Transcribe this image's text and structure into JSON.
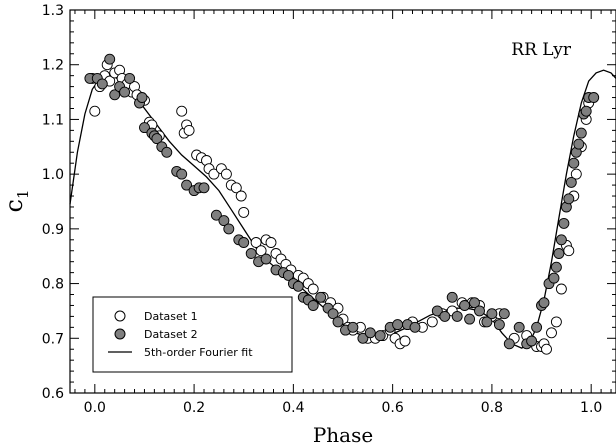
{
  "chart_data": {
    "type": "scatter",
    "title": "",
    "annotation": "RR Lyr",
    "xlabel": "Phase",
    "ylabel": "c",
    "ylabel_subscript": "1",
    "xlim": [
      -0.05,
      1.05
    ],
    "ylim": [
      0.6,
      1.3
    ],
    "xticks": [
      0.0,
      0.2,
      0.4,
      0.6,
      0.8,
      1.0
    ],
    "xtick_labels": [
      "0.0",
      "0.2",
      "0.4",
      "0.6",
      "0.8",
      "1.0"
    ],
    "yticks": [
      0.6,
      0.7,
      0.8,
      0.9,
      1.0,
      1.1,
      1.2,
      1.3
    ],
    "ytick_labels": [
      "0.6",
      "0.7",
      "0.8",
      "0.9",
      "1.0",
      "1.1",
      "1.2",
      "1.3"
    ],
    "grid": false,
    "legend_position": "bottom-left",
    "series": [
      {
        "name": "Dataset 1",
        "marker": "open-circle",
        "color": "#ffffff",
        "points": [
          [
            -0.005,
            1.175
          ],
          [
            0.0,
            1.115
          ],
          [
            0.01,
            1.16
          ],
          [
            0.02,
            1.18
          ],
          [
            0.025,
            1.2
          ],
          [
            0.03,
            1.17
          ],
          [
            0.04,
            1.185
          ],
          [
            0.05,
            1.19
          ],
          [
            0.055,
            1.175
          ],
          [
            0.065,
            1.165
          ],
          [
            0.075,
            1.15
          ],
          [
            0.08,
            1.16
          ],
          [
            0.085,
            1.145
          ],
          [
            0.1,
            1.135
          ],
          [
            0.11,
            1.095
          ],
          [
            0.115,
            1.09
          ],
          [
            0.13,
            1.07
          ],
          [
            0.175,
            1.115
          ],
          [
            0.18,
            1.075
          ],
          [
            0.185,
            1.09
          ],
          [
            0.19,
            1.08
          ],
          [
            0.205,
            1.035
          ],
          [
            0.215,
            1.03
          ],
          [
            0.225,
            1.025
          ],
          [
            0.23,
            1.01
          ],
          [
            0.24,
            1.0
          ],
          [
            0.255,
            1.01
          ],
          [
            0.265,
            1.0
          ],
          [
            0.275,
            0.98
          ],
          [
            0.285,
            0.975
          ],
          [
            0.295,
            0.96
          ],
          [
            0.3,
            0.93
          ],
          [
            0.325,
            0.875
          ],
          [
            0.335,
            0.86
          ],
          [
            0.345,
            0.88
          ],
          [
            0.355,
            0.875
          ],
          [
            0.365,
            0.855
          ],
          [
            0.375,
            0.845
          ],
          [
            0.385,
            0.835
          ],
          [
            0.395,
            0.825
          ],
          [
            0.41,
            0.815
          ],
          [
            0.42,
            0.81
          ],
          [
            0.43,
            0.8
          ],
          [
            0.44,
            0.79
          ],
          [
            0.46,
            0.775
          ],
          [
            0.475,
            0.765
          ],
          [
            0.49,
            0.755
          ],
          [
            0.5,
            0.735
          ],
          [
            0.51,
            0.72
          ],
          [
            0.52,
            0.715
          ],
          [
            0.535,
            0.72
          ],
          [
            0.55,
            0.7
          ],
          [
            0.565,
            0.7
          ],
          [
            0.58,
            0.705
          ],
          [
            0.595,
            0.715
          ],
          [
            0.605,
            0.7
          ],
          [
            0.615,
            0.69
          ],
          [
            0.625,
            0.695
          ],
          [
            0.64,
            0.73
          ],
          [
            0.66,
            0.72
          ],
          [
            0.68,
            0.73
          ],
          [
            0.7,
            0.745
          ],
          [
            0.72,
            0.75
          ],
          [
            0.74,
            0.765
          ],
          [
            0.76,
            0.765
          ],
          [
            0.775,
            0.76
          ],
          [
            0.785,
            0.73
          ],
          [
            0.8,
            0.74
          ],
          [
            0.815,
            0.745
          ],
          [
            0.845,
            0.7
          ],
          [
            0.87,
            0.705
          ],
          [
            0.89,
            0.685
          ],
          [
            0.9,
            0.685
          ],
          [
            0.905,
            0.69
          ],
          [
            0.91,
            0.68
          ],
          [
            0.92,
            0.71
          ],
          [
            0.93,
            0.73
          ],
          [
            0.94,
            0.79
          ],
          [
            0.95,
            0.87
          ],
          [
            0.955,
            0.86
          ],
          [
            0.965,
            0.96
          ],
          [
            0.97,
            1.0
          ],
          [
            0.98,
            1.05
          ],
          [
            0.99,
            1.1
          ],
          [
            0.995,
            1.13
          ]
        ]
      },
      {
        "name": "Dataset 2",
        "marker": "filled-circle",
        "color": "#7f7f7f",
        "points": [
          [
            -0.01,
            1.175
          ],
          [
            0.005,
            1.175
          ],
          [
            0.015,
            1.165
          ],
          [
            0.03,
            1.21
          ],
          [
            0.04,
            1.145
          ],
          [
            0.05,
            1.16
          ],
          [
            0.06,
            1.15
          ],
          [
            0.07,
            1.175
          ],
          [
            0.09,
            1.13
          ],
          [
            0.095,
            1.14
          ],
          [
            0.1,
            1.085
          ],
          [
            0.115,
            1.075
          ],
          [
            0.12,
            1.07
          ],
          [
            0.125,
            1.065
          ],
          [
            0.135,
            1.05
          ],
          [
            0.145,
            1.04
          ],
          [
            0.165,
            1.005
          ],
          [
            0.175,
            1.0
          ],
          [
            0.185,
            0.98
          ],
          [
            0.2,
            0.97
          ],
          [
            0.21,
            0.975
          ],
          [
            0.22,
            0.975
          ],
          [
            0.245,
            0.925
          ],
          [
            0.26,
            0.915
          ],
          [
            0.27,
            0.9
          ],
          [
            0.29,
            0.88
          ],
          [
            0.3,
            0.875
          ],
          [
            0.315,
            0.855
          ],
          [
            0.33,
            0.84
          ],
          [
            0.345,
            0.845
          ],
          [
            0.365,
            0.825
          ],
          [
            0.38,
            0.82
          ],
          [
            0.39,
            0.815
          ],
          [
            0.4,
            0.8
          ],
          [
            0.41,
            0.795
          ],
          [
            0.42,
            0.775
          ],
          [
            0.43,
            0.77
          ],
          [
            0.44,
            0.76
          ],
          [
            0.455,
            0.775
          ],
          [
            0.47,
            0.755
          ],
          [
            0.48,
            0.745
          ],
          [
            0.49,
            0.73
          ],
          [
            0.505,
            0.715
          ],
          [
            0.52,
            0.72
          ],
          [
            0.54,
            0.7
          ],
          [
            0.555,
            0.71
          ],
          [
            0.575,
            0.705
          ],
          [
            0.595,
            0.72
          ],
          [
            0.61,
            0.725
          ],
          [
            0.63,
            0.725
          ],
          [
            0.645,
            0.72
          ],
          [
            0.69,
            0.75
          ],
          [
            0.705,
            0.74
          ],
          [
            0.72,
            0.775
          ],
          [
            0.73,
            0.74
          ],
          [
            0.745,
            0.76
          ],
          [
            0.755,
            0.735
          ],
          [
            0.765,
            0.765
          ],
          [
            0.775,
            0.75
          ],
          [
            0.79,
            0.73
          ],
          [
            0.8,
            0.745
          ],
          [
            0.815,
            0.725
          ],
          [
            0.825,
            0.745
          ],
          [
            0.835,
            0.69
          ],
          [
            0.855,
            0.72
          ],
          [
            0.87,
            0.69
          ],
          [
            0.88,
            0.695
          ],
          [
            0.89,
            0.72
          ],
          [
            0.9,
            0.76
          ],
          [
            0.905,
            0.765
          ],
          [
            0.915,
            0.8
          ],
          [
            0.925,
            0.81
          ],
          [
            0.93,
            0.83
          ],
          [
            0.935,
            0.855
          ],
          [
            0.94,
            0.88
          ],
          [
            0.945,
            0.91
          ],
          [
            0.95,
            0.94
          ],
          [
            0.955,
            0.955
          ],
          [
            0.96,
            0.985
          ],
          [
            0.965,
            1.02
          ],
          [
            0.97,
            1.04
          ],
          [
            0.975,
            1.055
          ],
          [
            0.98,
            1.075
          ],
          [
            0.985,
            1.11
          ],
          [
            0.99,
            1.115
          ],
          [
            0.995,
            1.14
          ],
          [
            1.005,
            1.14
          ]
        ]
      },
      {
        "name": "5th-order Fourier fit",
        "marker": "line",
        "color": "#000000",
        "points": [
          [
            -0.05,
            0.945
          ],
          [
            -0.035,
            1.04
          ],
          [
            -0.02,
            1.11
          ],
          [
            -0.005,
            1.155
          ],
          [
            0.01,
            1.175
          ],
          [
            0.025,
            1.18
          ],
          [
            0.04,
            1.178
          ],
          [
            0.06,
            1.165
          ],
          [
            0.08,
            1.145
          ],
          [
            0.1,
            1.12
          ],
          [
            0.125,
            1.09
          ],
          [
            0.15,
            1.06
          ],
          [
            0.175,
            1.035
          ],
          [
            0.2,
            1.015
          ],
          [
            0.225,
            0.995
          ],
          [
            0.25,
            0.97
          ],
          [
            0.275,
            0.935
          ],
          [
            0.3,
            0.9
          ],
          [
            0.325,
            0.865
          ],
          [
            0.35,
            0.84
          ],
          [
            0.375,
            0.82
          ],
          [
            0.4,
            0.805
          ],
          [
            0.425,
            0.785
          ],
          [
            0.45,
            0.765
          ],
          [
            0.475,
            0.745
          ],
          [
            0.5,
            0.725
          ],
          [
            0.525,
            0.71
          ],
          [
            0.55,
            0.702
          ],
          [
            0.575,
            0.703
          ],
          [
            0.6,
            0.708
          ],
          [
            0.625,
            0.718
          ],
          [
            0.65,
            0.73
          ],
          [
            0.675,
            0.742
          ],
          [
            0.7,
            0.75
          ],
          [
            0.725,
            0.755
          ],
          [
            0.75,
            0.755
          ],
          [
            0.775,
            0.75
          ],
          [
            0.8,
            0.735
          ],
          [
            0.82,
            0.71
          ],
          [
            0.84,
            0.69
          ],
          [
            0.86,
            0.682
          ],
          [
            0.875,
            0.69
          ],
          [
            0.89,
            0.72
          ],
          [
            0.905,
            0.77
          ],
          [
            0.92,
            0.84
          ],
          [
            0.935,
            0.92
          ],
          [
            0.95,
            1.0
          ],
          [
            0.965,
            1.07
          ],
          [
            0.98,
            1.13
          ],
          [
            0.995,
            1.17
          ],
          [
            1.01,
            1.185
          ],
          [
            1.025,
            1.19
          ],
          [
            1.04,
            1.185
          ],
          [
            1.05,
            1.175
          ]
        ]
      }
    ]
  }
}
